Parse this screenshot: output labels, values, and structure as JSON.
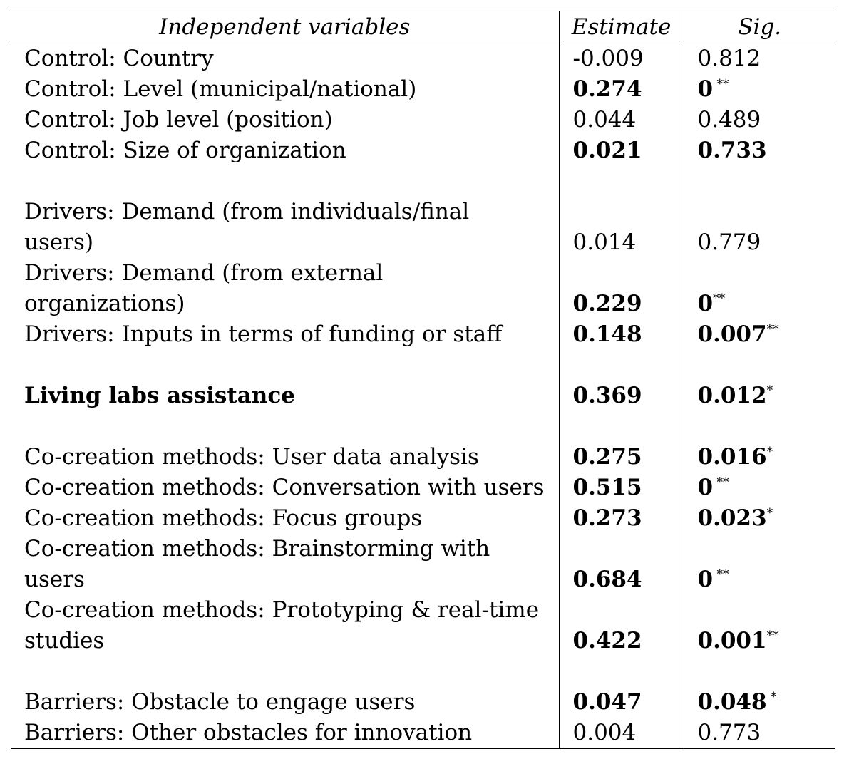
{
  "header": {
    "col_variables": "Independent variables",
    "col_estimate": "Estimate",
    "col_sig": "Sig."
  },
  "rows": [
    {
      "type": "data",
      "lines": [
        "Control: Country"
      ],
      "estimate": "-0.009",
      "sig": "0.812",
      "star": "",
      "bold_var": false,
      "bold_values": false
    },
    {
      "type": "data",
      "lines": [
        "Control: Level (municipal/national)"
      ],
      "estimate": "0.274",
      "sig": "0",
      "star": " **",
      "bold_var": false,
      "bold_values": true
    },
    {
      "type": "data",
      "lines": [
        "Control: Job level (position)"
      ],
      "estimate": "0.044",
      "sig": "0.489",
      "star": "",
      "bold_var": false,
      "bold_values": false
    },
    {
      "type": "data",
      "lines": [
        "Control: Size of organization"
      ],
      "estimate": "0.021",
      "sig": "0.733",
      "star": "",
      "bold_var": false,
      "bold_values": true
    },
    {
      "type": "blank"
    },
    {
      "type": "data",
      "lines": [
        "Drivers: Demand (from individuals/final",
        "users)"
      ],
      "estimate": "0.014",
      "sig": "0.779",
      "star": "",
      "bold_var": false,
      "bold_values": false
    },
    {
      "type": "data",
      "lines": [
        "Drivers: Demand (from external",
        "organizations)"
      ],
      "estimate": "0.229",
      "sig": "0",
      "star": "**",
      "bold_var": false,
      "bold_values": true
    },
    {
      "type": "data",
      "lines": [
        "Drivers: Inputs in terms of funding or staff"
      ],
      "estimate": "0.148",
      "sig": "0.007",
      "star": "**",
      "bold_var": false,
      "bold_values": true
    },
    {
      "type": "blank"
    },
    {
      "type": "data",
      "lines": [
        "Living labs assistance"
      ],
      "estimate": "0.369",
      "sig": "0.012",
      "star": "*",
      "bold_var": true,
      "bold_values": true
    },
    {
      "type": "blank"
    },
    {
      "type": "data",
      "lines": [
        "Co-creation methods: User data analysis"
      ],
      "estimate": "0.275",
      "sig": "0.016",
      "star": "*",
      "bold_var": false,
      "bold_values": true
    },
    {
      "type": "data",
      "lines": [
        "Co-creation methods: Conversation with users"
      ],
      "estimate": "0.515",
      "sig": "0",
      "star": " **",
      "bold_var": false,
      "bold_values": true
    },
    {
      "type": "data",
      "lines": [
        "Co-creation methods: Focus groups"
      ],
      "estimate": "0.273",
      "sig": "0.023",
      "star": "*",
      "bold_var": false,
      "bold_values": true
    },
    {
      "type": "data",
      "lines": [
        "Co-creation methods: Brainstorming with",
        "users"
      ],
      "estimate": "0.684",
      "sig": "0",
      "star": " **",
      "bold_var": false,
      "bold_values": true
    },
    {
      "type": "data",
      "lines": [
        "Co-creation methods: Prototyping & real-time",
        "studies"
      ],
      "estimate": "0.422",
      "sig": "0.001",
      "star": "**",
      "bold_var": false,
      "bold_values": true
    },
    {
      "type": "blank"
    },
    {
      "type": "data",
      "lines": [
        "Barriers: Obstacle to engage users"
      ],
      "estimate": "0.047",
      "sig": "0.048",
      "star": " *",
      "bold_var": false,
      "bold_values": true
    },
    {
      "type": "data",
      "lines": [
        "Barriers: Other obstacles for innovation"
      ],
      "estimate": "0.004",
      "sig": "0.773",
      "star": "",
      "bold_var": false,
      "bold_values": false
    }
  ]
}
